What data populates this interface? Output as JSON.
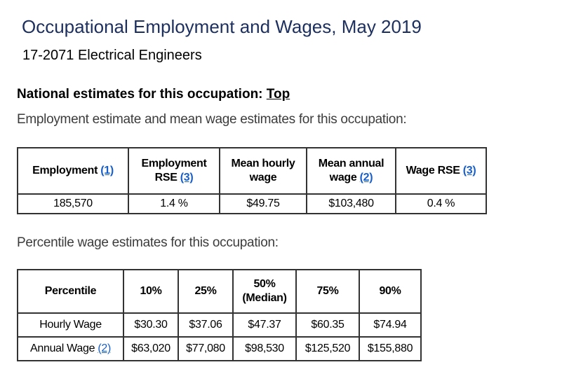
{
  "title": "Occupational Employment and Wages, May 2019",
  "occupation": "17-2071 Electrical Engineers",
  "national_heading": "National estimates for this occupation:",
  "top_link": "Top",
  "employment_intro": "Employment estimate and mean wage estimates for this occupation:",
  "employment_table": {
    "headers": [
      {
        "label": "Employment",
        "note": "(1)"
      },
      {
        "label": "Employment RSE",
        "note": "(3)"
      },
      {
        "label": "Mean hourly wage",
        "note": null
      },
      {
        "label": "Mean annual wage",
        "note": "(2)"
      },
      {
        "label": "Wage RSE",
        "note": "(3)"
      }
    ],
    "row": [
      "185,570",
      "1.4 %",
      "$49.75",
      "$103,480",
      "0.4 %"
    ]
  },
  "percentile_intro": "Percentile wage estimates for this occupation:",
  "percentile_table": {
    "headers": [
      "Percentile",
      "10%",
      "25%",
      "50%",
      "(Median)",
      "75%",
      "90%"
    ],
    "rows": [
      {
        "label": "Hourly Wage",
        "note": null,
        "values": [
          "$30.30",
          "$37.06",
          "$47.37",
          "$60.35",
          "$74.94"
        ]
      },
      {
        "label": "Annual Wage",
        "note": "(2)",
        "values": [
          "$63,020",
          "$77,080",
          "$98,530",
          "$125,520",
          "$155,880"
        ]
      }
    ]
  }
}
